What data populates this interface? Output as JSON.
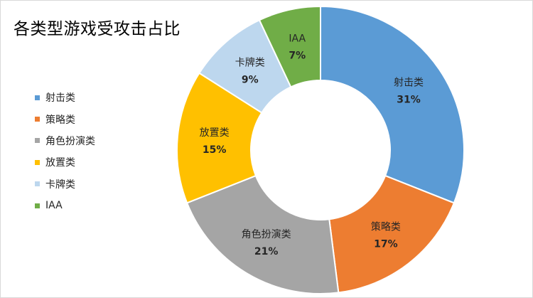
{
  "chart_data": {
    "type": "pie",
    "variant": "donut",
    "title": "各类型游戏受攻击占比",
    "legend_position": "left",
    "slices": [
      {
        "label": "射击类",
        "value": 31,
        "value_label": "31%",
        "color": "#5b9bd5"
      },
      {
        "label": "策略类",
        "value": 17,
        "value_label": "17%",
        "color": "#ed7d31"
      },
      {
        "label": "角色扮演类",
        "value": 21,
        "value_label": "21%",
        "color": "#a5a5a5"
      },
      {
        "label": "放置类",
        "value": 15,
        "value_label": "15%",
        "color": "#ffc000"
      },
      {
        "label": "卡牌类",
        "value": 9,
        "value_label": "9%",
        "color": "#bdd7ee"
      },
      {
        "label": "IAA",
        "value": 7,
        "value_label": "7%",
        "color": "#70ad47"
      }
    ]
  }
}
